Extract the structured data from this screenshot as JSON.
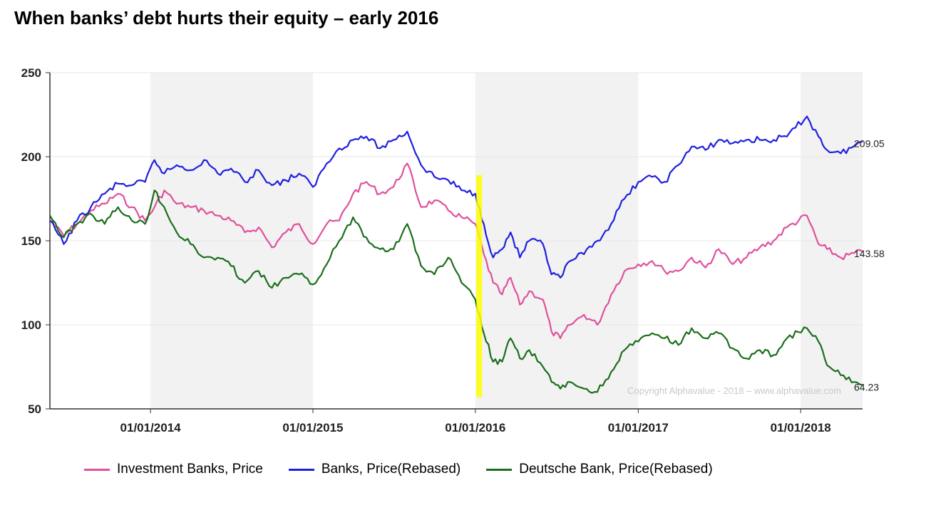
{
  "page": {
    "title": "When banks’ debt hurts their equity – early 2016",
    "watermark": "Copyright Alphavalue - 2018 – www.alphavalue.com"
  },
  "chart_data": {
    "type": "line",
    "title": "When banks’ debt hurts their equity – early 2016",
    "xlabel": "",
    "ylabel": "",
    "ylim": [
      50,
      250
    ],
    "yticks": [
      50,
      100,
      150,
      200,
      250
    ],
    "xlim": [
      "2013-05-20",
      "2018-05-20"
    ],
    "xticks": [
      "01/01/2014",
      "01/01/2015",
      "01/01/2016",
      "01/01/2017",
      "01/01/2018"
    ],
    "xtick_dates": [
      "2014-01-01",
      "2015-01-01",
      "2016-01-01",
      "2017-01-01",
      "2018-01-01"
    ],
    "grid": true,
    "shaded_years": [
      [
        "2014-01-01",
        "2015-01-01"
      ],
      [
        "2016-01-01",
        "2017-01-01"
      ],
      [
        "2018-01-01",
        "2018-05-20"
      ]
    ],
    "highlight": {
      "from": "2015-12-31",
      "to": "2016-01-12",
      "color": "#ffff00"
    },
    "legend_position": "bottom",
    "series": [
      {
        "name": "Investment Banks, Price",
        "color": "#e0509c",
        "last_value_label": "143.58",
        "points": [
          [
            "2013-05-20",
            162
          ],
          [
            "2013-06-20",
            153
          ],
          [
            "2013-07-20",
            160
          ],
          [
            "2013-08-20",
            168
          ],
          [
            "2013-09-20",
            172
          ],
          [
            "2013-10-20",
            178
          ],
          [
            "2013-11-20",
            170
          ],
          [
            "2013-12-20",
            162
          ],
          [
            "2014-01-10",
            170
          ],
          [
            "2014-02-01",
            180
          ],
          [
            "2014-03-01",
            172
          ],
          [
            "2014-04-01",
            170
          ],
          [
            "2014-05-01",
            168
          ],
          [
            "2014-06-01",
            165
          ],
          [
            "2014-07-01",
            162
          ],
          [
            "2014-08-01",
            155
          ],
          [
            "2014-09-01",
            158
          ],
          [
            "2014-10-01",
            146
          ],
          [
            "2014-11-01",
            155
          ],
          [
            "2014-12-01",
            160
          ],
          [
            "2015-01-01",
            148
          ],
          [
            "2015-02-01",
            160
          ],
          [
            "2015-03-01",
            162
          ],
          [
            "2015-04-01",
            178
          ],
          [
            "2015-05-01",
            185
          ],
          [
            "2015-06-01",
            178
          ],
          [
            "2015-07-01",
            182
          ],
          [
            "2015-08-01",
            196
          ],
          [
            "2015-09-01",
            170
          ],
          [
            "2015-10-01",
            174
          ],
          [
            "2015-11-01",
            168
          ],
          [
            "2015-12-01",
            164
          ],
          [
            "2016-01-01",
            160
          ],
          [
            "2016-01-20",
            142
          ],
          [
            "2016-02-10",
            125
          ],
          [
            "2016-03-01",
            118
          ],
          [
            "2016-03-20",
            128
          ],
          [
            "2016-04-10",
            112
          ],
          [
            "2016-05-01",
            120
          ],
          [
            "2016-06-01",
            115
          ],
          [
            "2016-06-20",
            96
          ],
          [
            "2016-07-10",
            92
          ],
          [
            "2016-08-01",
            100
          ],
          [
            "2016-09-01",
            106
          ],
          [
            "2016-10-01",
            100
          ],
          [
            "2016-11-01",
            118
          ],
          [
            "2016-12-01",
            132
          ],
          [
            "2017-01-01",
            136
          ],
          [
            "2017-02-01",
            138
          ],
          [
            "2017-03-01",
            132
          ],
          [
            "2017-04-01",
            132
          ],
          [
            "2017-05-01",
            140
          ],
          [
            "2017-06-01",
            134
          ],
          [
            "2017-07-01",
            145
          ],
          [
            "2017-08-01",
            136
          ],
          [
            "2017-09-01",
            140
          ],
          [
            "2017-10-01",
            146
          ],
          [
            "2017-11-01",
            150
          ],
          [
            "2017-12-01",
            158
          ],
          [
            "2018-01-15",
            165
          ],
          [
            "2018-02-10",
            148
          ],
          [
            "2018-03-01",
            145
          ],
          [
            "2018-04-01",
            140
          ],
          [
            "2018-05-20",
            143.58
          ]
        ]
      },
      {
        "name": "Banks, Price(Rebased)",
        "color": "#1f1fe0",
        "last_value_label": "209.05",
        "points": [
          [
            "2013-05-20",
            162
          ],
          [
            "2013-06-20",
            148
          ],
          [
            "2013-07-20",
            162
          ],
          [
            "2013-08-20",
            170
          ],
          [
            "2013-09-20",
            178
          ],
          [
            "2013-10-20",
            184
          ],
          [
            "2013-11-20",
            183
          ],
          [
            "2013-12-20",
            185
          ],
          [
            "2014-01-10",
            198
          ],
          [
            "2014-02-01",
            190
          ],
          [
            "2014-03-01",
            195
          ],
          [
            "2014-04-01",
            192
          ],
          [
            "2014-05-01",
            198
          ],
          [
            "2014-06-01",
            190
          ],
          [
            "2014-07-01",
            193
          ],
          [
            "2014-08-01",
            185
          ],
          [
            "2014-09-01",
            192
          ],
          [
            "2014-10-01",
            183
          ],
          [
            "2014-11-01",
            186
          ],
          [
            "2014-12-01",
            190
          ],
          [
            "2015-01-01",
            182
          ],
          [
            "2015-02-01",
            196
          ],
          [
            "2015-03-01",
            205
          ],
          [
            "2015-04-01",
            210
          ],
          [
            "2015-05-01",
            212
          ],
          [
            "2015-06-01",
            205
          ],
          [
            "2015-07-01",
            210
          ],
          [
            "2015-08-01",
            215
          ],
          [
            "2015-09-01",
            195
          ],
          [
            "2015-10-01",
            188
          ],
          [
            "2015-11-01",
            186
          ],
          [
            "2015-12-01",
            180
          ],
          [
            "2016-01-01",
            178
          ],
          [
            "2016-01-20",
            160
          ],
          [
            "2016-02-10",
            140
          ],
          [
            "2016-03-01",
            145
          ],
          [
            "2016-03-20",
            155
          ],
          [
            "2016-04-10",
            140
          ],
          [
            "2016-05-01",
            150
          ],
          [
            "2016-06-01",
            148
          ],
          [
            "2016-06-20",
            130
          ],
          [
            "2016-07-10",
            128
          ],
          [
            "2016-08-01",
            138
          ],
          [
            "2016-09-01",
            142
          ],
          [
            "2016-10-01",
            150
          ],
          [
            "2016-11-01",
            160
          ],
          [
            "2016-12-01",
            175
          ],
          [
            "2017-01-01",
            185
          ],
          [
            "2017-02-01",
            188
          ],
          [
            "2017-03-01",
            185
          ],
          [
            "2017-04-01",
            195
          ],
          [
            "2017-05-01",
            206
          ],
          [
            "2017-06-01",
            204
          ],
          [
            "2017-07-01",
            210
          ],
          [
            "2017-08-01",
            208
          ],
          [
            "2017-09-01",
            210
          ],
          [
            "2017-10-01",
            210
          ],
          [
            "2017-11-01",
            210
          ],
          [
            "2017-12-01",
            212
          ],
          [
            "2018-01-15",
            224
          ],
          [
            "2018-02-10",
            212
          ],
          [
            "2018-03-01",
            204
          ],
          [
            "2018-04-01",
            202
          ],
          [
            "2018-05-20",
            209.05
          ]
        ]
      },
      {
        "name": "Deutsche Bank, Price(Rebased)",
        "color": "#1b6e1b",
        "last_value_label": "64.23",
        "points": [
          [
            "2013-05-20",
            165
          ],
          [
            "2013-06-20",
            152
          ],
          [
            "2013-07-20",
            160
          ],
          [
            "2013-08-20",
            166
          ],
          [
            "2013-09-20",
            160
          ],
          [
            "2013-10-20",
            170
          ],
          [
            "2013-11-20",
            162
          ],
          [
            "2013-12-20",
            160
          ],
          [
            "2014-01-10",
            180
          ],
          [
            "2014-02-01",
            170
          ],
          [
            "2014-03-01",
            155
          ],
          [
            "2014-04-01",
            148
          ],
          [
            "2014-05-01",
            140
          ],
          [
            "2014-06-01",
            140
          ],
          [
            "2014-07-01",
            135
          ],
          [
            "2014-08-01",
            125
          ],
          [
            "2014-09-01",
            132
          ],
          [
            "2014-10-01",
            122
          ],
          [
            "2014-11-01",
            128
          ],
          [
            "2014-12-01",
            130
          ],
          [
            "2015-01-01",
            124
          ],
          [
            "2015-02-01",
            136
          ],
          [
            "2015-03-01",
            150
          ],
          [
            "2015-04-01",
            164
          ],
          [
            "2015-05-01",
            152
          ],
          [
            "2015-06-01",
            145
          ],
          [
            "2015-07-01",
            145
          ],
          [
            "2015-08-01",
            160
          ],
          [
            "2015-09-01",
            135
          ],
          [
            "2015-10-01",
            130
          ],
          [
            "2015-11-01",
            140
          ],
          [
            "2015-12-01",
            125
          ],
          [
            "2016-01-01",
            115
          ],
          [
            "2016-01-20",
            95
          ],
          [
            "2016-02-10",
            78
          ],
          [
            "2016-03-01",
            78
          ],
          [
            "2016-03-20",
            92
          ],
          [
            "2016-04-10",
            80
          ],
          [
            "2016-05-01",
            85
          ],
          [
            "2016-06-01",
            75
          ],
          [
            "2016-06-20",
            66
          ],
          [
            "2016-07-10",
            62
          ],
          [
            "2016-08-01",
            66
          ],
          [
            "2016-09-01",
            62
          ],
          [
            "2016-10-01",
            60
          ],
          [
            "2016-11-01",
            72
          ],
          [
            "2016-12-01",
            85
          ],
          [
            "2017-01-01",
            90
          ],
          [
            "2017-02-01",
            95
          ],
          [
            "2017-03-01",
            92
          ],
          [
            "2017-04-01",
            88
          ],
          [
            "2017-05-01",
            98
          ],
          [
            "2017-06-01",
            92
          ],
          [
            "2017-07-01",
            95
          ],
          [
            "2017-08-01",
            86
          ],
          [
            "2017-09-01",
            80
          ],
          [
            "2017-10-01",
            85
          ],
          [
            "2017-11-01",
            82
          ],
          [
            "2017-12-01",
            92
          ],
          [
            "2018-01-15",
            98
          ],
          [
            "2018-02-10",
            90
          ],
          [
            "2018-03-01",
            76
          ],
          [
            "2018-04-01",
            70
          ],
          [
            "2018-05-20",
            64.23
          ]
        ]
      }
    ]
  }
}
